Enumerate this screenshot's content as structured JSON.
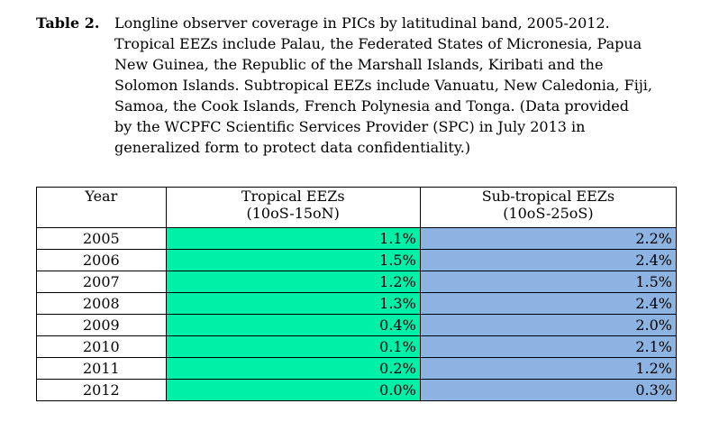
{
  "caption": {
    "label": "Table 2.",
    "lines": [
      "Longline observer coverage in PICs by latitudinal band, 2005-2012.",
      "Tropical EEZs include Palau, the Federated States of Micronesia, Papua",
      "New Guinea, the Republic of the Marshall Islands, Kiribati and the",
      "Solomon Islands.  Subtropical EEZs include Vanuatu, New Caledonia, Fiji,",
      "Samoa, the Cook Islands, French Polynesia and Tonga.  (Data provided",
      "by the WCPFC Scientific Services Provider (SPC) in July 2013 in",
      "generalized form to protect data confidentiality.)"
    ]
  },
  "table": {
    "headers": {
      "year": "Year",
      "tropical": [
        "Tropical EEZs",
        "(10oS-15oN)"
      ],
      "subtropical": [
        "Sub-tropical EEZs",
        "(10oS-25oS)"
      ]
    },
    "rows": [
      [
        "2005",
        "1.1%",
        "2.2%"
      ],
      [
        "2006",
        "1.5%",
        "2.4%"
      ],
      [
        "2007",
        "1.2%",
        "1.5%"
      ],
      [
        "2008",
        "1.3%",
        "2.4%"
      ],
      [
        "2009",
        "0.4%",
        "2.0%"
      ],
      [
        "2010",
        "0.1%",
        "2.1%"
      ],
      [
        "2011",
        "0.2%",
        "1.2%"
      ],
      [
        "2012",
        "0.0%",
        "0.3%"
      ]
    ]
  },
  "colors": {
    "tropical_fill": "#00f0a8",
    "subtropical_fill": "#8db3e2"
  }
}
